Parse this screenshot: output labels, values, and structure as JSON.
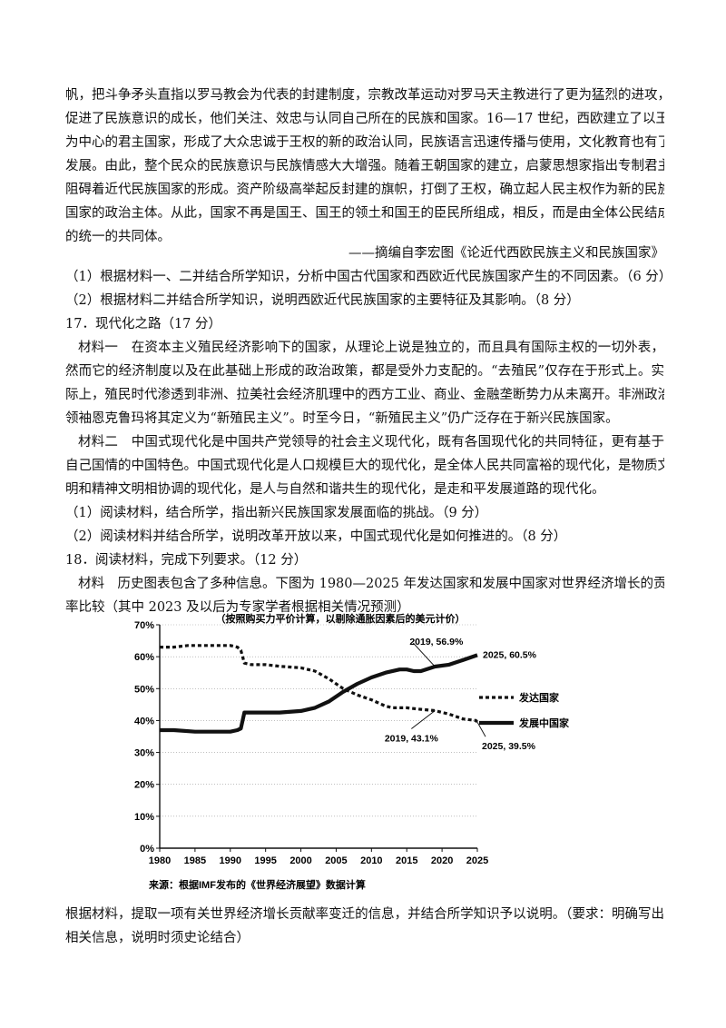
{
  "lines": [
    "帆，把斗争矛头直指以罗马教会为代表的封建制度，宗教改革运动对罗马天主教进行了更为猛烈的进攻，",
    "促进了民族意识的成长，他们关注、效忠与认同自己所在的民族和国家。16—17 世纪，西欧建立了以王权",
    "为中心的君主国家，形成了大众忠诚于王权的新的政治认同，民族语言迅速传播与使用，文化教育也有了",
    "发展。由此，整个民众的民族意识与民族情感大大增强。随着王朝国家的建立，启蒙思想家指出专制君主",
    "阻碍着近代民族国家的形成。资产阶级高举起反封建的旗帜，打倒了王权，确立起人民主权作为新的民族",
    "国家的政治主体。从此，国家不再是国王、国王的领土和国王的臣民所组成，相反，而是由全体公民结成",
    "的统一的共同体。"
  ],
  "source_note": "——摘编自李宏图《论近代西欧民族主义和民族国家》",
  "q16_1": "（1）根据材料一、二并结合所学知识，分析中国古代国家和西欧近代民族国家产生的不同因素。（6 分）",
  "q16_2": "（2）根据材料二并结合所学知识，说明西欧近代民族国家的主要特征及其影响。（8 分）",
  "q17_title": "17．现代化之路（17 分）",
  "m1": [
    "材料一　在资本主义殖民经济影响下的国家，从理论上说是独立的，而且具有国际主权的一切外表，",
    "然而它的经济制度以及在此基础上形成的政治政策，都是受外力支配的。“去殖民”仅存在于形式上。实",
    "际上，殖民时代渗透到非洲、拉美社会经济肌理中的西方工业、商业、金融垄断势力从未离开。非洲政治",
    "领袖恩克鲁玛将其定义为“新殖民主义”。时至今日，“新殖民主义”仍广泛存在于新兴民族国家。"
  ],
  "m2": [
    "材料二　中国式现代化是中国共产党领导的社会主义现代化，既有各国现代化的共同特征，更有基于",
    "自己国情的中国特色。中国式现代化是人口规模巨大的现代化，是全体人民共同富裕的现代化，是物质文",
    "明和精神文明相协调的现代化，是人与自然和谐共生的现代化，是走和平发展道路的现代化。"
  ],
  "q17_1": "（1）阅读材料，结合所学，指出新兴民族国家发展面临的挑战。（9 分）",
  "q17_2": "（2）阅读材料并结合所学，说明改革开放以来，中国式现代化是如何推进的。（8 分）",
  "q18_title": "18．阅读材料，完成下列要求。（12 分）",
  "q18_material": [
    "材料　历史图表包含了多种信息。下图为 1980—2025 年发达国家和发展中国家对世界经济增长的贡献",
    "率比较（其中 2023 及以后为专家学者根据相关情况预测）"
  ],
  "q18_req": [
    "根据材料，提取一项有关世界经济增长贡献率变迁的信息，并结合所学知识予以说明。（要求：明确写出",
    "相关信息，说明时须史论结合）"
  ],
  "chart_data": {
    "type": "line",
    "title": "（按照购买力平价计算，以剔除通胀因素后的美元计价）",
    "source": "来源：根据IMF发布的《世界经济展望》数据计算",
    "x_ticks": [
      "1980",
      "1985",
      "1990",
      "1995",
      "2000",
      "2005",
      "2010",
      "2015",
      "2020",
      "2025"
    ],
    "y_ticks": [
      "70%",
      "60%",
      "50%",
      "40%",
      "30%",
      "20%",
      "10%",
      "0%"
    ],
    "xlim": [
      1980,
      2025
    ],
    "ylim": [
      0,
      70
    ],
    "series": [
      {
        "name": "发达国家",
        "style": "dashed",
        "x": [
          1980,
          1982,
          1984,
          1986,
          1988,
          1990,
          1991,
          1991.5,
          1992,
          1993,
          1995,
          1997,
          2000,
          2002,
          2004,
          2006,
          2008,
          2010,
          2012,
          2013,
          2014,
          2015,
          2017,
          2019,
          2021,
          2023,
          2024.8,
          2025
        ],
        "y": [
          63,
          63,
          63.5,
          63.5,
          63.5,
          63.5,
          63,
          62,
          58,
          57.5,
          57.5,
          57,
          56.5,
          55.5,
          53,
          50,
          48,
          46.5,
          44.5,
          44,
          44,
          44,
          43.5,
          43.1,
          42,
          40.5,
          40,
          39.5
        ]
      },
      {
        "name": "发展中国家",
        "style": "solid",
        "x": [
          1980,
          1982,
          1985,
          1987,
          1990,
          1991,
          1991.5,
          1992,
          1995,
          1997,
          2000,
          2002,
          2004,
          2006,
          2008,
          2010,
          2012,
          2014,
          2015,
          2016,
          2017,
          2019,
          2021,
          2023,
          2025
        ],
        "y": [
          37,
          37,
          36.5,
          36.5,
          36.5,
          37,
          37.5,
          42.5,
          42.5,
          42.5,
          43,
          44,
          46,
          49,
          51.5,
          53.5,
          55,
          56,
          56,
          55.5,
          55.5,
          56.9,
          57.5,
          59,
          60.5
        ]
      }
    ],
    "annotations": [
      {
        "text": "2019, 56.9%",
        "x": 2019,
        "y": 56.9
      },
      {
        "text": "2025, 60.5%",
        "x": 2025,
        "y": 60.5
      },
      {
        "text": "2019, 43.1%",
        "x": 2019,
        "y": 43.1
      },
      {
        "text": "2025, 39.5%",
        "x": 2025,
        "y": 39.5
      }
    ],
    "legend_placement": "right"
  }
}
